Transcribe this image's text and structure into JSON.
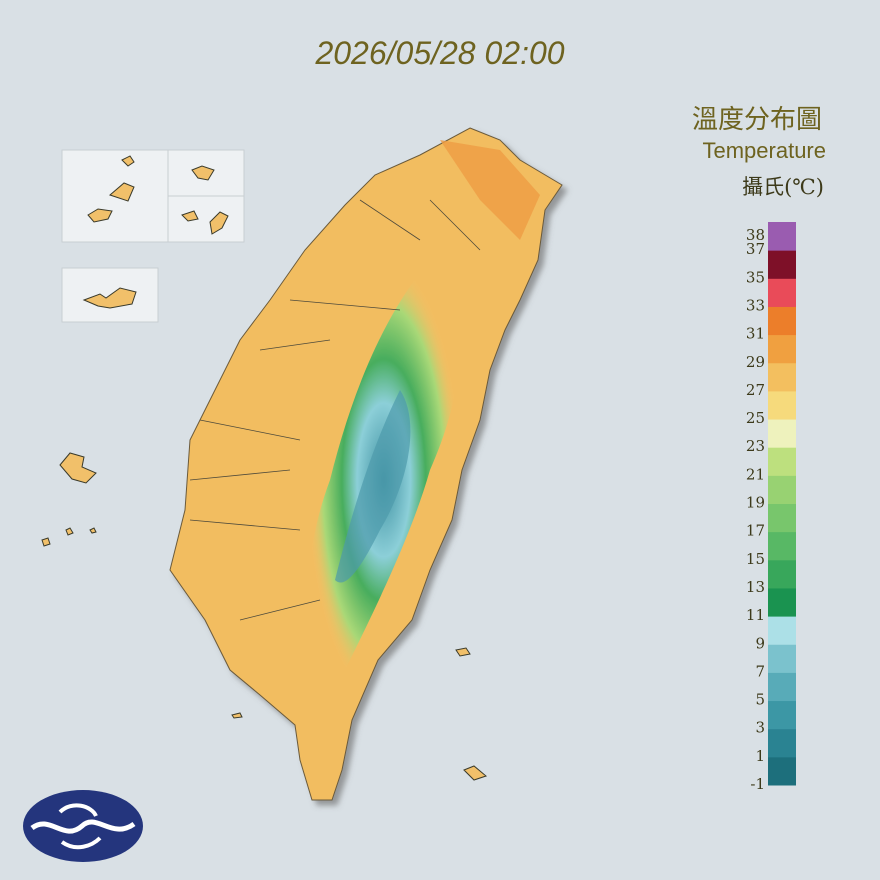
{
  "timestamp": "2026/05/28 02:00",
  "legend": {
    "title": "溫度分布圖",
    "subtitle": "Temperature",
    "unit": "攝氏(℃)",
    "lim": [
      -1,
      39
    ],
    "ticks": [
      38,
      37,
      35,
      33,
      31,
      29,
      27,
      25,
      23,
      21,
      19,
      17,
      15,
      13,
      11,
      9,
      7,
      5,
      3,
      1,
      -1
    ],
    "colors": [
      "#1d6f7c",
      "#2a8392",
      "#3c97a5",
      "#58abb8",
      "#7bc2cd",
      "#ace0e7",
      "#1a9350",
      "#38a75b",
      "#58b865",
      "#78c66c",
      "#98d272",
      "#bde07e",
      "#eef2bd",
      "#f6da7c",
      "#f3bf5f",
      "#f0a040",
      "#ec7e2a",
      "#e94b59",
      "#7e1028",
      "#9a5cb0"
    ]
  }
}
